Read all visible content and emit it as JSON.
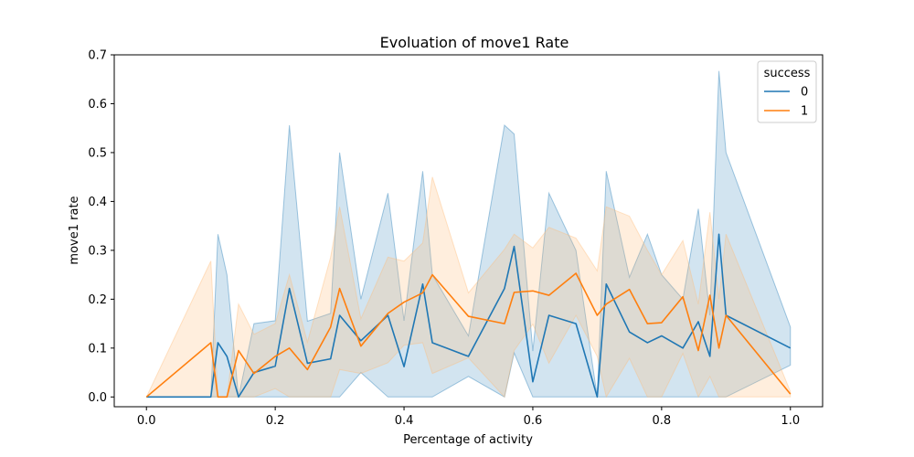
{
  "chart_data": {
    "type": "line",
    "title": "Evoluation of move1 Rate",
    "xlabel": "Percentage of activity",
    "ylabel": "move1 rate",
    "xlim": [
      -0.05,
      1.05
    ],
    "ylim": [
      -0.02,
      0.7
    ],
    "xticks": [
      0.0,
      0.2,
      0.4,
      0.6,
      0.8,
      1.0
    ],
    "xtick_labels": [
      "0.0",
      "0.2",
      "0.4",
      "0.6",
      "0.8",
      "1.0"
    ],
    "yticks": [
      0.0,
      0.1,
      0.2,
      0.3,
      0.4,
      0.5,
      0.6,
      0.7
    ],
    "ytick_labels": [
      "0.0",
      "0.1",
      "0.2",
      "0.3",
      "0.4",
      "0.5",
      "0.6",
      "0.7"
    ],
    "grid": false,
    "legend": {
      "title": "success",
      "placement": "top-right"
    },
    "series": [
      {
        "name": "0",
        "color": "#1f77b4",
        "band_color": "#1f77b4",
        "x": [
          0.0,
          0.1,
          0.111,
          0.125,
          0.143,
          0.167,
          0.2,
          0.222,
          0.25,
          0.286,
          0.3,
          0.333,
          0.375,
          0.4,
          0.429,
          0.444,
          0.5,
          0.556,
          0.571,
          0.6,
          0.625,
          0.667,
          0.7,
          0.714,
          0.75,
          0.778,
          0.8,
          0.833,
          0.857,
          0.875,
          0.889,
          0.9,
          1.0
        ],
        "y": [
          0.0,
          0.0,
          0.111,
          0.083,
          0.0,
          0.05,
          0.063,
          0.222,
          0.069,
          0.078,
          0.167,
          0.115,
          0.167,
          0.062,
          0.231,
          0.111,
          0.083,
          0.222,
          0.308,
          0.031,
          0.167,
          0.15,
          0.0,
          0.231,
          0.133,
          0.111,
          0.125,
          0.1,
          0.154,
          0.083,
          0.333,
          0.167,
          0.1
        ],
        "low": [
          0.0,
          0.0,
          0.0,
          0.0,
          0.0,
          0.0,
          0.0,
          0.0,
          0.0,
          0.0,
          0.0,
          0.05,
          0.0,
          0.0,
          0.0,
          0.0,
          0.042,
          0.0,
          0.09,
          0.0,
          0.0,
          0.0,
          0.0,
          0.0,
          0.0,
          0.0,
          0.0,
          0.0,
          0.0,
          0.0,
          0.0,
          0.0,
          0.065
        ],
        "high": [
          0.0,
          0.0,
          0.333,
          0.25,
          0.0,
          0.15,
          0.156,
          0.556,
          0.155,
          0.171,
          0.5,
          0.2,
          0.417,
          0.156,
          0.462,
          0.25,
          0.125,
          0.556,
          0.538,
          0.094,
          0.417,
          0.3,
          0.0,
          0.462,
          0.245,
          0.333,
          0.25,
          0.2,
          0.385,
          0.167,
          0.667,
          0.5,
          0.143
        ]
      },
      {
        "name": "1",
        "color": "#ff7f0e",
        "band_color": "#ffbb78",
        "x": [
          0.0,
          0.1,
          0.111,
          0.125,
          0.143,
          0.167,
          0.2,
          0.222,
          0.25,
          0.286,
          0.3,
          0.333,
          0.375,
          0.4,
          0.429,
          0.444,
          0.5,
          0.556,
          0.571,
          0.6,
          0.625,
          0.667,
          0.7,
          0.714,
          0.75,
          0.778,
          0.8,
          0.833,
          0.857,
          0.875,
          0.889,
          0.9,
          1.0
        ],
        "y": [
          0.0,
          0.111,
          0.0,
          0.0,
          0.095,
          0.048,
          0.083,
          0.1,
          0.056,
          0.143,
          0.222,
          0.104,
          0.171,
          0.194,
          0.213,
          0.25,
          0.165,
          0.15,
          0.214,
          0.217,
          0.208,
          0.253,
          0.167,
          0.19,
          0.22,
          0.15,
          0.152,
          0.205,
          0.095,
          0.208,
          0.1,
          0.167,
          0.006
        ],
        "low": [
          0.0,
          0.0,
          0.0,
          0.0,
          0.0,
          0.0,
          0.017,
          0.0,
          0.0,
          0.0,
          0.056,
          0.048,
          0.07,
          0.106,
          0.111,
          0.048,
          0.08,
          0.0,
          0.095,
          0.149,
          0.069,
          0.167,
          0.083,
          0.0,
          0.079,
          0.0,
          0.0,
          0.089,
          0.0,
          0.042,
          0.0,
          0.0,
          0.0
        ],
        "high": [
          0.0,
          0.278,
          0.0,
          0.0,
          0.19,
          0.128,
          0.15,
          0.25,
          0.112,
          0.286,
          0.389,
          0.16,
          0.286,
          0.278,
          0.315,
          0.45,
          0.213,
          0.302,
          0.333,
          0.305,
          0.347,
          0.325,
          0.258,
          0.389,
          0.37,
          0.3,
          0.25,
          0.32,
          0.19,
          0.378,
          0.2,
          0.333,
          0.011
        ]
      }
    ]
  }
}
